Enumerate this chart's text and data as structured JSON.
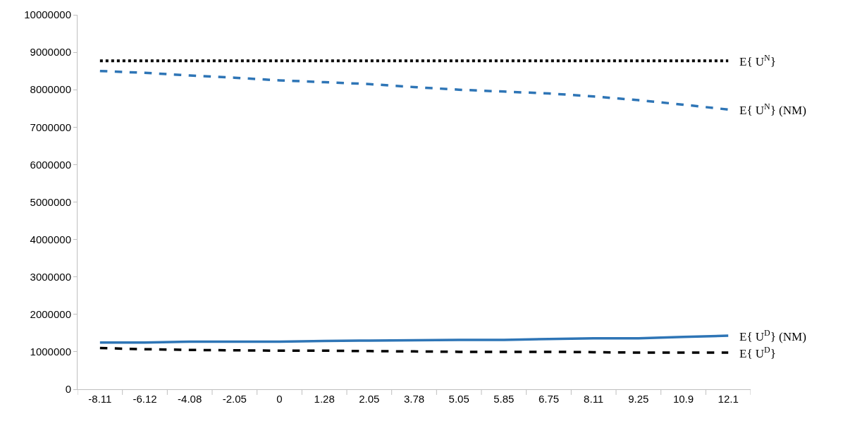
{
  "chart_data": {
    "type": "line",
    "categories": [
      "-8.11",
      "-6.12",
      "-4.08",
      "-2.05",
      "0",
      "1.28",
      "2.05",
      "3.78",
      "5.05",
      "5.85",
      "6.75",
      "8.11",
      "9.25",
      "10.9",
      "12.1"
    ],
    "series": [
      {
        "name": "E{ U$^{N}$}",
        "color": "#000000",
        "line_style": "dotted",
        "values": [
          8770000,
          8770000,
          8770000,
          8770000,
          8770000,
          8770000,
          8770000,
          8770000,
          8770000,
          8770000,
          8770000,
          8770000,
          8770000,
          8770000,
          8770000
        ]
      },
      {
        "name": "E{ U$^{N}$} (NM)",
        "color": "#2e75b6",
        "line_style": "dashed",
        "values": [
          8500000,
          8450000,
          8380000,
          8320000,
          8250000,
          8200000,
          8150000,
          8070000,
          8000000,
          7950000,
          7900000,
          7820000,
          7720000,
          7600000,
          7470000
        ]
      },
      {
        "name": "E{ U$^{D}$} (NM)",
        "color": "#2e75b6",
        "line_style": "solid",
        "values": [
          1250000,
          1250000,
          1270000,
          1270000,
          1270000,
          1290000,
          1300000,
          1310000,
          1320000,
          1320000,
          1340000,
          1360000,
          1360000,
          1400000,
          1430000
        ]
      },
      {
        "name": "E{ U$^{D}$}",
        "color": "#000000",
        "line_style": "dashed",
        "values": [
          1100000,
          1070000,
          1050000,
          1040000,
          1030000,
          1030000,
          1020000,
          1010000,
          1000000,
          1000000,
          1000000,
          990000,
          980000,
          980000,
          980000
        ]
      }
    ],
    "ylim": [
      0,
      10000000
    ],
    "yticks": [
      0,
      1000000,
      2000000,
      3000000,
      4000000,
      5000000,
      6000000,
      7000000,
      8000000,
      9000000,
      10000000
    ],
    "legend": false,
    "marker": "none"
  }
}
